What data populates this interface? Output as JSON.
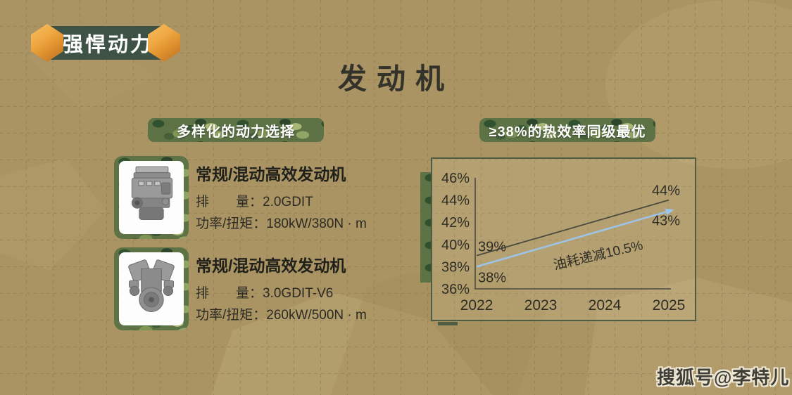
{
  "badge": {
    "label": "强悍动力"
  },
  "title": "发动机",
  "left_panel": {
    "header": "多样化的动力选择",
    "engines": [
      {
        "photo_icon": "inline4-engine-photo",
        "name": "常规/混动高效发动机",
        "specs": [
          {
            "label": "排　　量：",
            "value": "2.0GDIT"
          },
          {
            "label": "功率/扭矩：",
            "value": "180kW/380N · m"
          }
        ]
      },
      {
        "photo_icon": "v6-engine-photo",
        "name": "常规/混动高效发动机",
        "specs": [
          {
            "label": "排　　量：",
            "value": "3.0GDIT-V6"
          },
          {
            "label": "功率/扭矩：",
            "value": "260kW/500N · m"
          }
        ]
      }
    ]
  },
  "right_panel": {
    "header": "≥38%的热效率同级最优"
  },
  "chart_data": {
    "type": "line",
    "title": "",
    "xlabel": "",
    "ylabel": "",
    "x_ticks": [
      "2022",
      "2023",
      "2024",
      "2025"
    ],
    "y_ticks": [
      "46%",
      "44%",
      "42%",
      "40%",
      "38%",
      "36%"
    ],
    "x_range": [
      2022,
      2025
    ],
    "y_range": [
      36,
      46
    ],
    "grid": false,
    "legend": false,
    "series": [
      {
        "name": "upper-efficiency-line",
        "color": "#4a4a40",
        "points": [
          {
            "x": 2022,
            "y": 39
          },
          {
            "x": 2025,
            "y": 44
          }
        ],
        "start_label": "39%",
        "end_label": "44%",
        "label_side": "above",
        "arrow": false
      },
      {
        "name": "lower-efficiency-line",
        "color": "#9dc3e6",
        "points": [
          {
            "x": 2022,
            "y": 38
          },
          {
            "x": 2025,
            "y": 43
          }
        ],
        "start_label": "38%",
        "end_label": "43%",
        "label_side": "below",
        "arrow": true
      }
    ],
    "annotation": "油耗递减10.5%"
  },
  "watermark": "搜狐号@李特儿",
  "colors": {
    "background": "#ab9464",
    "ribbon_green": "#3e5345",
    "gem_orange": "#efa843",
    "panel_border": "#4e5c44",
    "text_dark": "#33332b",
    "line_black": "#4a4a40",
    "line_blue": "#9dc3e6"
  }
}
